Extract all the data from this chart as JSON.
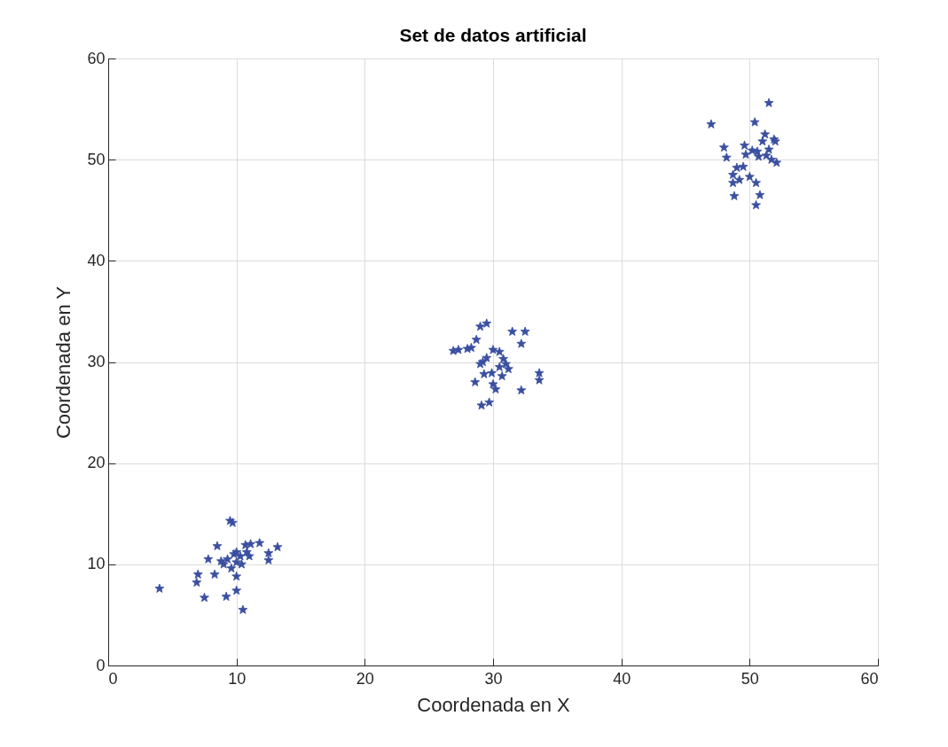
{
  "chart_data": {
    "type": "scatter",
    "title": "Set de datos artificial",
    "xlabel": "Coordenada en X",
    "ylabel": "Coordenada en Y",
    "xlim": [
      0,
      60
    ],
    "xticks": [
      0,
      10,
      20,
      30,
      40,
      50,
      60
    ],
    "ylim": [
      0,
      60
    ],
    "yticks": [
      0,
      10,
      20,
      30,
      40,
      50,
      60
    ],
    "grid": true,
    "marker": "star",
    "series": [
      {
        "color": "#3a4fa0",
        "x": [
          4.0,
          7.0,
          6.9,
          7.5,
          7.8,
          8.5,
          8.3,
          9.0,
          9.2,
          9.5,
          9.7,
          9.3,
          9.8,
          10.0,
          10.0,
          10.0,
          10.5,
          10.3,
          10.7,
          10.8,
          11.1,
          11.8,
          12.5,
          12.5,
          13.2,
          8.8,
          9.6,
          10.4,
          11.0,
          10.0,
          26.9,
          27.3,
          28.0,
          28.3,
          28.7,
          29.0,
          29.5,
          31.5,
          32.5,
          32.2,
          29.5,
          30.0,
          30.5,
          29.0,
          29.3,
          28.6,
          30.5,
          31.0,
          31.2,
          30.7,
          30.0,
          30.2,
          29.1,
          29.7,
          32.2,
          33.6,
          33.6,
          29.9,
          29.2,
          30.8,
          47.0,
          48.0,
          48.2,
          48.7,
          48.7,
          48.8,
          49.2,
          49.5,
          49.6,
          49.7,
          50.4,
          51.5,
          50.2,
          50.7,
          51.0,
          51.3,
          51.7,
          51.9,
          52.1,
          51.5,
          50.5,
          50.8,
          50.5,
          49.0,
          50.0,
          51.2,
          52.0,
          50.6
        ],
        "values": [
          7.6,
          9.0,
          8.2,
          6.7,
          10.5,
          11.8,
          9.0,
          10.0,
          6.8,
          14.3,
          14.1,
          10.5,
          11.0,
          10.2,
          8.8,
          7.4,
          5.5,
          10.8,
          11.9,
          11.2,
          12.0,
          12.1,
          10.4,
          11.1,
          11.7,
          10.3,
          9.6,
          10.0,
          10.8,
          11.2,
          31.1,
          31.2,
          31.3,
          31.4,
          32.2,
          33.5,
          33.8,
          33.0,
          33.0,
          31.8,
          30.4,
          31.2,
          31.0,
          29.8,
          28.8,
          28.0,
          29.5,
          29.8,
          29.3,
          28.6,
          27.8,
          27.3,
          25.7,
          26.0,
          27.2,
          28.9,
          28.2,
          28.9,
          30.0,
          30.3,
          53.5,
          51.2,
          50.2,
          48.5,
          47.7,
          46.4,
          48.0,
          49.3,
          51.4,
          50.5,
          53.7,
          55.6,
          50.9,
          50.3,
          51.8,
          50.4,
          50.0,
          52.0,
          49.7,
          51.0,
          47.7,
          46.5,
          45.5,
          49.2,
          48.3,
          52.5,
          51.8,
          50.8
        ]
      }
    ]
  }
}
